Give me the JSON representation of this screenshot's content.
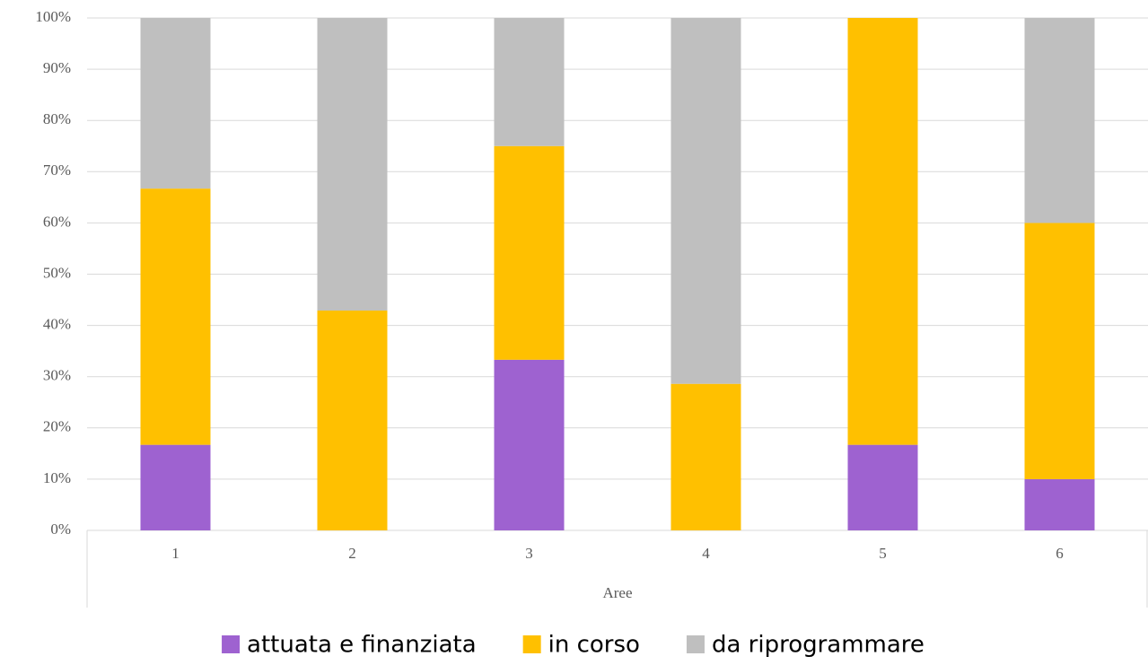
{
  "chart_data": {
    "type": "stacked_bar",
    "x_label": "Aree",
    "categories": [
      "1",
      "2",
      "3",
      "4",
      "5",
      "6"
    ],
    "series": [
      {
        "name": "attuata e finanziata",
        "color": "#9e62d0",
        "values": [
          16.7,
          0,
          33.3,
          0,
          16.7,
          10
        ]
      },
      {
        "name": "in corso",
        "color": "#ffc000",
        "values": [
          50,
          42.9,
          41.7,
          28.6,
          83.3,
          50
        ]
      },
      {
        "name": "da riprogrammare",
        "color": "#bfbfbf",
        "values": [
          33.3,
          57.1,
          25,
          71.4,
          0,
          40
        ]
      }
    ],
    "ylim": [
      0,
      100
    ],
    "yticks": [
      {
        "value": 0,
        "label": "0%"
      },
      {
        "value": 10,
        "label": "10%"
      },
      {
        "value": 20,
        "label": "20%"
      },
      {
        "value": 30,
        "label": "30%"
      },
      {
        "value": 40,
        "label": "40%"
      },
      {
        "value": 50,
        "label": "50%"
      },
      {
        "value": 60,
        "label": "60%"
      },
      {
        "value": 70,
        "label": "70%"
      },
      {
        "value": 80,
        "label": "80%"
      },
      {
        "value": 90,
        "label": "90%"
      },
      {
        "value": 100,
        "label": "100%"
      }
    ],
    "grid": true,
    "legend": "bottom"
  }
}
